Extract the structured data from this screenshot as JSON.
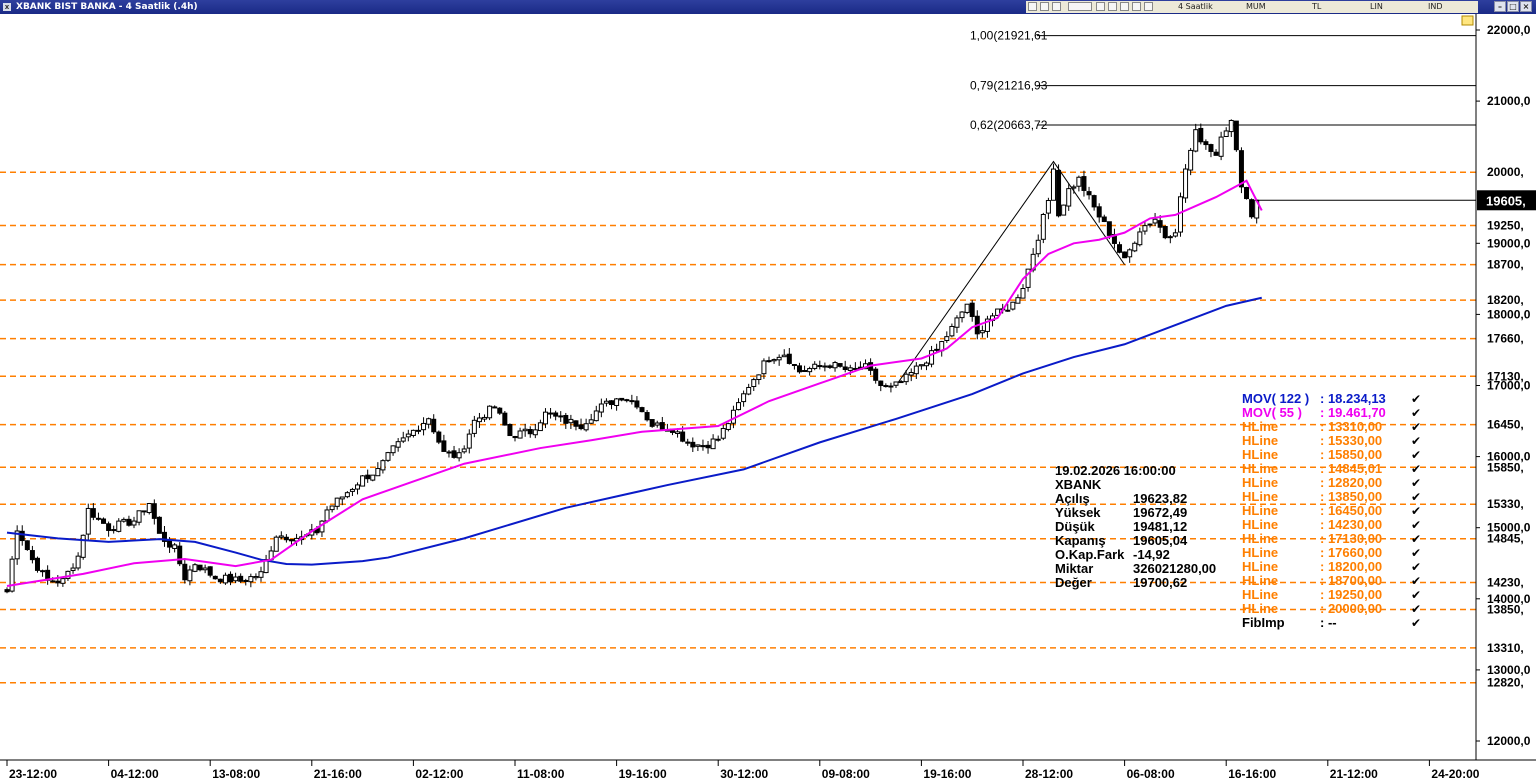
{
  "window": {
    "title": "XBANK BIST BANKA - 4 Saatlik (.4h)",
    "toolbar": {
      "period": "4 Saatlik",
      "chart_style": "MUM",
      "currency": "TL",
      "scale": "LIN",
      "indicator": "IND"
    }
  },
  "colors": {
    "up": "#ffffff",
    "down": "#000000",
    "mov122": "#0a1bc8",
    "mov55": "#f000f0",
    "hline": "#ff7f00",
    "fib": "#000000",
    "last_price_bg": "#000000"
  },
  "chart_data": {
    "type": "candlestick",
    "title": "XBANK BIST BANKA - 4 Saatlik (.4h)",
    "ylim": [
      11800,
      22200
    ],
    "y_ticks": [
      {
        "v": 22000,
        "label": "22000,0"
      },
      {
        "v": 21000,
        "label": "21000,0"
      },
      {
        "v": 19000,
        "label": "19000,0"
      },
      {
        "v": 18000,
        "label": "18000,0"
      },
      {
        "v": 17000,
        "label": "17000,0"
      },
      {
        "v": 16000,
        "label": "16000,0"
      },
      {
        "v": 15000,
        "label": "15000,0"
      },
      {
        "v": 14000,
        "label": "14000,0"
      },
      {
        "v": 13000,
        "label": "13000,0"
      },
      {
        "v": 12000,
        "label": "12000,0"
      }
    ],
    "x_labels": [
      "23-12:00",
      "04-12:00",
      "13-08:00",
      "21-16:00",
      "02-12:00",
      "11-08:00",
      "19-16:00",
      "30-12:00",
      "09-08:00",
      "19-16:00",
      "28-12:00",
      "06-08:00",
      "16-16:00",
      "21-12:00",
      "24-20:00"
    ],
    "x_label_bar": [
      0,
      20,
      40,
      60,
      80,
      100,
      120,
      140,
      160,
      180,
      200,
      220,
      240,
      260,
      280
    ],
    "hlines": [
      {
        "v": 20000,
        "label": "20000,"
      },
      {
        "v": 19250,
        "label": "19250,"
      },
      {
        "v": 18700,
        "label": "18700,"
      },
      {
        "v": 18200,
        "label": "18200,"
      },
      {
        "v": 17660,
        "label": "17660,"
      },
      {
        "v": 17130,
        "label": "17130,"
      },
      {
        "v": 16450,
        "label": "16450,"
      },
      {
        "v": 15850,
        "label": "15850,"
      },
      {
        "v": 15330,
        "label": "15330,"
      },
      {
        "v": 14845,
        "label": "14845,"
      },
      {
        "v": 14230,
        "label": "14230,"
      },
      {
        "v": 13850,
        "label": "13850,"
      },
      {
        "v": 13310,
        "label": "13310,"
      },
      {
        "v": 12820,
        "label": "12820,"
      }
    ],
    "fib_levels": [
      {
        "v": 21921.61,
        "label": "1,00(21921,61"
      },
      {
        "v": 21216.93,
        "label": "0,79(21216,93"
      },
      {
        "v": 20663.72,
        "label": "0,62(20663,72"
      }
    ],
    "fib_trendline": [
      {
        "bar": 175,
        "v": 17000
      },
      {
        "bar": 206,
        "v": 20150
      },
      {
        "bar": 220,
        "v": 18700
      }
    ],
    "last_price": {
      "v": 19605.04,
      "label": "19605,"
    },
    "anchors": [
      [
        0,
        14100
      ],
      [
        2,
        15000
      ],
      [
        5,
        14550
      ],
      [
        8,
        14250
      ],
      [
        11,
        14250
      ],
      [
        14,
        14600
      ],
      [
        16,
        15250
      ],
      [
        20,
        15000
      ],
      [
        25,
        15100
      ],
      [
        28,
        15350
      ],
      [
        30,
        14900
      ],
      [
        33,
        14700
      ],
      [
        35,
        14300
      ],
      [
        37,
        14500
      ],
      [
        41,
        14300
      ],
      [
        46,
        14250
      ],
      [
        50,
        14350
      ],
      [
        53,
        14900
      ],
      [
        58,
        14850
      ],
      [
        61,
        14950
      ],
      [
        63,
        15250
      ],
      [
        67,
        15500
      ],
      [
        70,
        15700
      ],
      [
        73,
        15800
      ],
      [
        76,
        16100
      ],
      [
        79,
        16300
      ],
      [
        83,
        16550
      ],
      [
        86,
        16050
      ],
      [
        89,
        16000
      ],
      [
        92,
        16500
      ],
      [
        96,
        16700
      ],
      [
        99,
        16300
      ],
      [
        103,
        16350
      ],
      [
        106,
        16600
      ],
      [
        110,
        16500
      ],
      [
        113,
        16450
      ],
      [
        117,
        16700
      ],
      [
        121,
        16850
      ],
      [
        124,
        16750
      ],
      [
        127,
        16450
      ],
      [
        131,
        16400
      ],
      [
        134,
        16200
      ],
      [
        137,
        16150
      ],
      [
        140,
        16250
      ],
      [
        143,
        16600
      ],
      [
        146,
        17000
      ],
      [
        150,
        17400
      ],
      [
        153,
        17450
      ],
      [
        156,
        17200
      ],
      [
        159,
        17250
      ],
      [
        162,
        17300
      ],
      [
        166,
        17200
      ],
      [
        169,
        17250
      ],
      [
        172,
        17000
      ],
      [
        174,
        16950
      ],
      [
        177,
        17100
      ],
      [
        180,
        17300
      ],
      [
        183,
        17500
      ],
      [
        186,
        17800
      ],
      [
        189,
        18150
      ],
      [
        191,
        17700
      ],
      [
        193,
        17950
      ],
      [
        196,
        18050
      ],
      [
        198,
        18150
      ],
      [
        200,
        18400
      ],
      [
        203,
        19100
      ],
      [
        205,
        19600
      ],
      [
        206,
        20100
      ],
      [
        207,
        19400
      ],
      [
        209,
        19750
      ],
      [
        211,
        19900
      ],
      [
        214,
        19500
      ],
      [
        217,
        19150
      ],
      [
        220,
        18750
      ],
      [
        223,
        19200
      ],
      [
        226,
        19350
      ],
      [
        228,
        19100
      ],
      [
        230,
        19200
      ],
      [
        232,
        20050
      ],
      [
        234,
        20550
      ],
      [
        236,
        20400
      ],
      [
        238,
        20250
      ],
      [
        239,
        20550
      ],
      [
        241,
        20700
      ],
      [
        243,
        19850
      ],
      [
        245,
        19400
      ],
      [
        246,
        19605.04
      ]
    ],
    "mov122": [
      [
        0,
        14930
      ],
      [
        10,
        14850
      ],
      [
        20,
        14800
      ],
      [
        30,
        14840
      ],
      [
        37,
        14800
      ],
      [
        45,
        14650
      ],
      [
        50,
        14550
      ],
      [
        55,
        14490
      ],
      [
        60,
        14480
      ],
      [
        70,
        14530
      ],
      [
        75,
        14580
      ],
      [
        90,
        14850
      ],
      [
        110,
        15280
      ],
      [
        130,
        15600
      ],
      [
        145,
        15820
      ],
      [
        160,
        16200
      ],
      [
        175,
        16530
      ],
      [
        190,
        16880
      ],
      [
        200,
        17170
      ],
      [
        210,
        17400
      ],
      [
        220,
        17580
      ],
      [
        230,
        17850
      ],
      [
        240,
        18120
      ],
      [
        247,
        18234.13
      ]
    ],
    "mov55": [
      [
        0,
        14180
      ],
      [
        15,
        14350
      ],
      [
        25,
        14500
      ],
      [
        35,
        14560
      ],
      [
        45,
        14460
      ],
      [
        52,
        14550
      ],
      [
        60,
        14950
      ],
      [
        70,
        15400
      ],
      [
        80,
        15650
      ],
      [
        90,
        15900
      ],
      [
        105,
        16120
      ],
      [
        115,
        16230
      ],
      [
        125,
        16350
      ],
      [
        140,
        16430
      ],
      [
        150,
        16780
      ],
      [
        160,
        17030
      ],
      [
        170,
        17280
      ],
      [
        180,
        17380
      ],
      [
        185,
        17520
      ],
      [
        190,
        17820
      ],
      [
        195,
        17950
      ],
      [
        200,
        18500
      ],
      [
        205,
        18850
      ],
      [
        210,
        19000
      ],
      [
        215,
        19050
      ],
      [
        220,
        19150
      ],
      [
        225,
        19350
      ],
      [
        230,
        19400
      ],
      [
        238,
        19650
      ],
      [
        244,
        19880
      ],
      [
        247,
        19461.7
      ]
    ],
    "bar_count": 247
  },
  "data_window": {
    "header": "19.02.2026  16:00:00",
    "symbol": "XBANK",
    "rows": [
      {
        "label": "Açılış",
        "value": "19623,82"
      },
      {
        "label": "Yüksek",
        "value": "19672,49"
      },
      {
        "label": "Düşük",
        "value": "19481,12"
      },
      {
        "label": "Kapanış",
        "value": "19605,04"
      },
      {
        "label": "O.Kap.Fark",
        "value": "-14,92"
      },
      {
        "label": "Miktar",
        "value": "326021280,00"
      },
      {
        "label": "Değer",
        "value": "19700,62"
      }
    ]
  },
  "legend": [
    {
      "name": "MOV( 122 )",
      "value": ": 18.234,13",
      "color": "#0a1bc8",
      "check": "✔"
    },
    {
      "name": "MOV( 55 )",
      "value": ": 19.461,70",
      "color": "#f000f0",
      "check": "✔"
    },
    {
      "name": "HLine",
      "value": ": 13310,00",
      "color": "#ff7f00",
      "check": "✔"
    },
    {
      "name": "HLine",
      "value": ": 15330,00",
      "color": "#ff7f00",
      "check": "✔"
    },
    {
      "name": "HLine",
      "value": ": 15850,00",
      "color": "#ff7f00",
      "check": "✔"
    },
    {
      "name": "HLine",
      "value": ": 14845,01",
      "color": "#ff7f00",
      "check": "✔"
    },
    {
      "name": "HLine",
      "value": ": 12820,00",
      "color": "#ff7f00",
      "check": "✔"
    },
    {
      "name": "HLine",
      "value": ": 13850,00",
      "color": "#ff7f00",
      "check": "✔"
    },
    {
      "name": "HLine",
      "value": ": 16450,00",
      "color": "#ff7f00",
      "check": "✔"
    },
    {
      "name": "HLine",
      "value": ": 14230,00",
      "color": "#ff7f00",
      "check": "✔"
    },
    {
      "name": "HLine",
      "value": ": 17130,00",
      "color": "#ff7f00",
      "check": "✔"
    },
    {
      "name": "HLine",
      "value": ": 17660,00",
      "color": "#ff7f00",
      "check": "✔"
    },
    {
      "name": "HLine",
      "value": ": 18200,00",
      "color": "#ff7f00",
      "check": "✔"
    },
    {
      "name": "HLine",
      "value": ": 18700,00",
      "color": "#ff7f00",
      "check": "✔"
    },
    {
      "name": "HLine",
      "value": ": 19250,00",
      "color": "#ff7f00",
      "check": "✔"
    },
    {
      "name": "HLine",
      "value": ": 20000,00",
      "color": "#ff7f00",
      "check": "✔"
    },
    {
      "name": "FibImp",
      "value": ": --",
      "color": "#000000",
      "check": "✔"
    }
  ]
}
